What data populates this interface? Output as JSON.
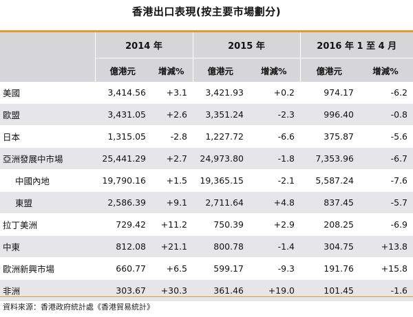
{
  "title": "香港出口表現(按主要市場劃分)",
  "colors": {
    "accent": "#e8972c",
    "header_bg": "#d6d6d8",
    "stripe_bg": "#e6e6e8"
  },
  "years": [
    "2014 年",
    "2015 年",
    "2016 年 1 至 4 月"
  ],
  "subheaders": [
    "億港元",
    "增減%",
    "億港元",
    "增減%",
    "億港元",
    "增減%"
  ],
  "rows": [
    {
      "name": "美國",
      "indent": false,
      "cells": [
        "3,414.56",
        "+3.1",
        "3,421.93",
        "+0.2",
        "974.17",
        "-6.2"
      ]
    },
    {
      "name": "歐盟",
      "indent": false,
      "cells": [
        "3,431.05",
        "+2.6",
        "3,351.24",
        "-2.3",
        "996.40",
        "-0.8"
      ]
    },
    {
      "name": "日本",
      "indent": false,
      "cells": [
        "1,315.05",
        "-2.8",
        "1,227.72",
        "-6.6",
        "375.87",
        "-5.6"
      ]
    },
    {
      "name": "亞洲發展中市場",
      "indent": false,
      "cells": [
        "25,441.29",
        "+2.7",
        "24,973.80",
        "-1.8",
        "7,353.96",
        "-6.7"
      ]
    },
    {
      "name": "中國內地",
      "indent": true,
      "cells": [
        "19,790.16",
        "+1.5",
        "19,365.15",
        "-2.1",
        "5,587.24",
        "-7.6"
      ]
    },
    {
      "name": "東盟",
      "indent": true,
      "cells": [
        "2,586.39",
        "+9.1",
        "2,711.64",
        "+4.8",
        "837.45",
        "-5.7"
      ]
    },
    {
      "name": "拉丁美洲",
      "indent": false,
      "cells": [
        "729.42",
        "+11.2",
        "750.39",
        "+2.9",
        "208.25",
        "-6.9"
      ]
    },
    {
      "name": "中東",
      "indent": false,
      "cells": [
        "812.08",
        "+21.1",
        "800.78",
        "-1.4",
        "304.75",
        "+13.8"
      ]
    },
    {
      "name": "歐洲新興市場",
      "indent": false,
      "cells": [
        "660.77",
        "+6.5",
        "599.17",
        "-9.3",
        "191.76",
        "+15.8"
      ]
    },
    {
      "name": "非洲",
      "indent": false,
      "cells": [
        "303.67",
        "+30.3",
        "361.46",
        "+19.0",
        "101.45",
        "-1.6"
      ]
    }
  ],
  "source": "資料來源：香港政府統計處《香港貿易統計》"
}
